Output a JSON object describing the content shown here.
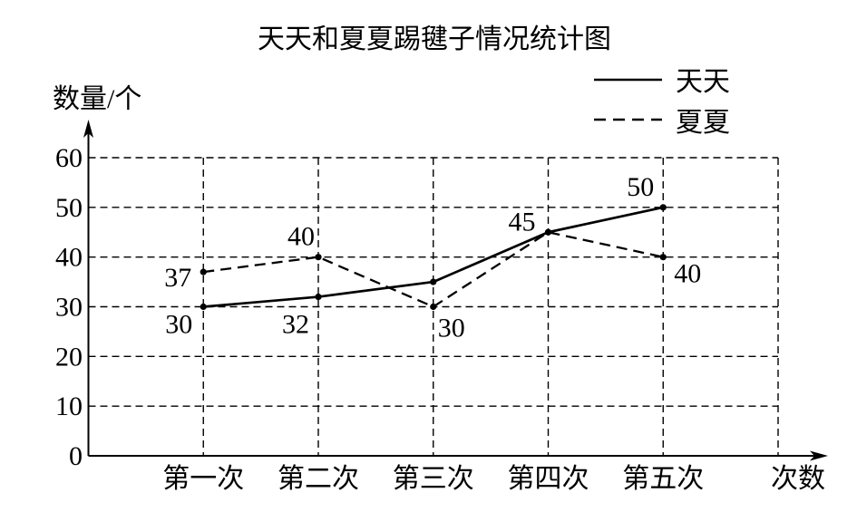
{
  "chart_data": {
    "type": "line",
    "title": "天天和夏夏踢毽子情况统计图",
    "xlabel": "次数",
    "ylabel": "数量/个",
    "categories": [
      "第一次",
      "第二次",
      "第三次",
      "第四次",
      "第五次"
    ],
    "ylim": [
      0,
      60
    ],
    "yticks": [
      0,
      10,
      20,
      30,
      40,
      50,
      60
    ],
    "grid": true,
    "legend": "top-right",
    "series": [
      {
        "name": "天天",
        "dashed": false,
        "color": "#000000",
        "values": [
          30,
          32,
          35,
          45,
          50
        ],
        "labels": [
          "30",
          "32",
          null,
          "45",
          "50"
        ]
      },
      {
        "name": "夏夏",
        "dashed": true,
        "color": "#000000",
        "values": [
          37,
          40,
          30,
          45,
          40
        ],
        "labels": [
          "37",
          "40",
          "30",
          null,
          "40"
        ]
      }
    ]
  }
}
